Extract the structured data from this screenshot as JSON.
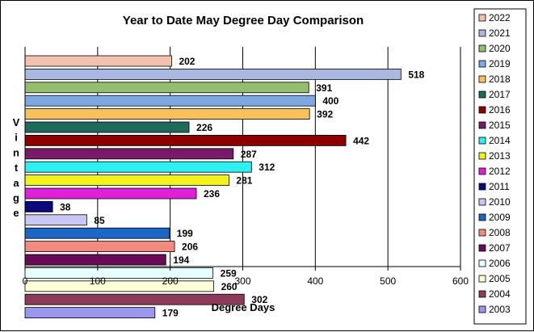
{
  "chart_data": {
    "type": "bar",
    "orientation": "horizontal",
    "title": "Year to Date May Degree Day Comparison",
    "xlabel": "Degree Days",
    "ylabel": "Vintage",
    "xlim": [
      0,
      600
    ],
    "x_ticks": [
      "0",
      "100",
      "200",
      "300",
      "400",
      "500",
      "600"
    ],
    "grid": "vertical",
    "legend_position": "right",
    "categories": [
      "2022",
      "2021",
      "2020",
      "2019",
      "2018",
      "2017",
      "2016",
      "2015",
      "2014",
      "2013",
      "2012",
      "2011",
      "2010",
      "2009",
      "2008",
      "2007",
      "2006",
      "2005",
      "2004",
      "2003"
    ],
    "values": [
      202,
      518,
      391,
      400,
      392,
      226,
      442,
      287,
      312,
      281,
      236,
      38,
      85,
      199,
      206,
      194,
      259,
      260,
      302,
      179
    ],
    "labels": [
      "202",
      "518",
      "391",
      "400",
      "392",
      "226",
      "442",
      "287",
      "312",
      "281",
      "236",
      "38",
      "85",
      "199",
      "206",
      "194",
      "259",
      "260",
      "302",
      "179"
    ],
    "colors": [
      "#F4C0B0",
      "#A9B8E0",
      "#93BD6F",
      "#7FA7E0",
      "#F8C15A",
      "#1E6B5C",
      "#8B0000",
      "#7A1A6A",
      "#2EF0F0",
      "#F2F21A",
      "#E020D8",
      "#0C0A7A",
      "#C9C6F4",
      "#1C66C8",
      "#F28A80",
      "#6A0A56",
      "#E8FFFF",
      "#FFFFD8",
      "#8E3A5A",
      "#9B96F0"
    ]
  }
}
